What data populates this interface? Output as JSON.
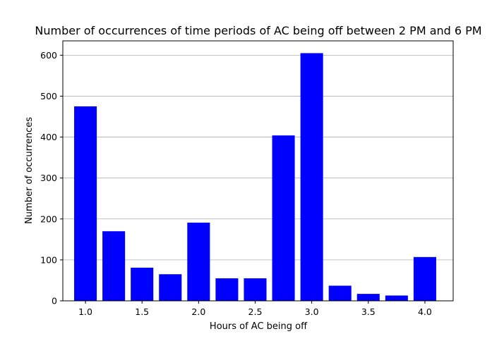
{
  "chart_data": {
    "type": "bar",
    "title": "Number of occurrences of time periods of AC being off between 2 PM and 6 PM",
    "xlabel": "Hours of AC being off",
    "ylabel": "Number of occurrences",
    "x": [
      1.0,
      1.25,
      1.5,
      1.75,
      2.0,
      2.25,
      2.5,
      2.75,
      3.0,
      3.25,
      3.5,
      3.75,
      4.0
    ],
    "values": [
      475,
      170,
      81,
      65,
      191,
      55,
      55,
      404,
      605,
      37,
      17,
      13,
      107
    ],
    "bar_width": 0.2,
    "xlim": [
      0.8,
      4.25
    ],
    "ylim": [
      0,
      635
    ],
    "xticks": [
      1.0,
      1.5,
      2.0,
      2.5,
      3.0,
      3.5,
      4.0
    ],
    "xtick_labels": [
      "1.0",
      "1.5",
      "2.0",
      "2.5",
      "3.0",
      "3.5",
      "4.0"
    ],
    "yticks": [
      0,
      100,
      200,
      300,
      400,
      500,
      600
    ],
    "ytick_labels": [
      "0",
      "100",
      "200",
      "300",
      "400",
      "500",
      "600"
    ],
    "grid": "horizontal",
    "bar_color": "#0000ff",
    "grid_color": "#b0b0b0"
  }
}
